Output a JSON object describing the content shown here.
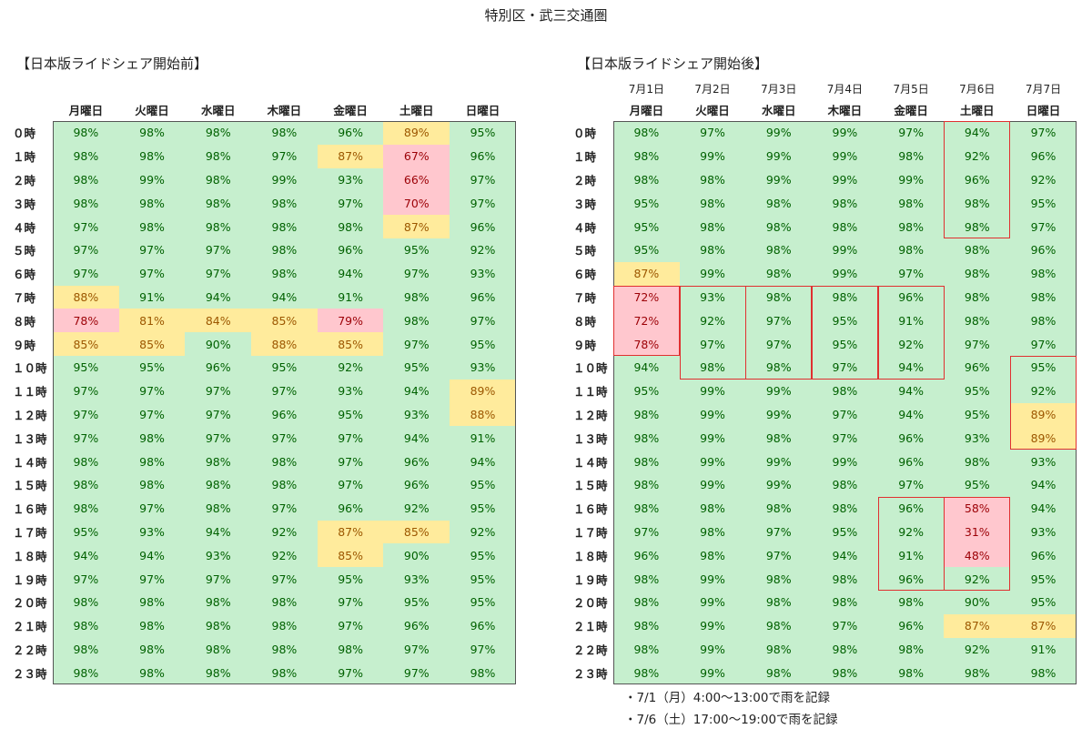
{
  "title": "特別区・武三交通圏",
  "chart_data": [
    {
      "type": "heatmap",
      "title": "【日本版ライドシェア開始前】",
      "columns": [
        "月曜日",
        "火曜日",
        "水曜日",
        "木曜日",
        "金曜日",
        "土曜日",
        "日曜日"
      ],
      "rows": [
        "０時",
        "１時",
        "２時",
        "３時",
        "４時",
        "５時",
        "６時",
        "７時",
        "８時",
        "９時",
        "１０時",
        "１１時",
        "１２時",
        "１３時",
        "１４時",
        "１５時",
        "１６時",
        "１７時",
        "１８時",
        "１９時",
        "２０時",
        "２１時",
        "２２時",
        "２３時"
      ],
      "values": [
        [
          98,
          98,
          98,
          98,
          96,
          89,
          95
        ],
        [
          98,
          98,
          98,
          97,
          87,
          67,
          96
        ],
        [
          98,
          99,
          98,
          99,
          93,
          66,
          97
        ],
        [
          98,
          98,
          98,
          98,
          97,
          70,
          97
        ],
        [
          97,
          98,
          98,
          98,
          98,
          87,
          96
        ],
        [
          97,
          97,
          97,
          98,
          96,
          95,
          92
        ],
        [
          97,
          97,
          97,
          98,
          94,
          97,
          93
        ],
        [
          88,
          91,
          94,
          94,
          91,
          98,
          96
        ],
        [
          78,
          81,
          84,
          85,
          79,
          98,
          97
        ],
        [
          85,
          85,
          90,
          88,
          85,
          97,
          95
        ],
        [
          95,
          95,
          96,
          95,
          92,
          95,
          93
        ],
        [
          97,
          97,
          97,
          97,
          93,
          94,
          89
        ],
        [
          97,
          97,
          97,
          96,
          95,
          93,
          88
        ],
        [
          97,
          98,
          97,
          97,
          97,
          94,
          91
        ],
        [
          98,
          98,
          98,
          98,
          97,
          96,
          94
        ],
        [
          98,
          98,
          98,
          98,
          97,
          96,
          95
        ],
        [
          98,
          97,
          98,
          97,
          96,
          92,
          95
        ],
        [
          95,
          93,
          94,
          92,
          87,
          85,
          92
        ],
        [
          94,
          94,
          93,
          92,
          85,
          90,
          95
        ],
        [
          97,
          97,
          97,
          97,
          95,
          93,
          95
        ],
        [
          98,
          98,
          98,
          98,
          97,
          95,
          95
        ],
        [
          98,
          98,
          98,
          98,
          97,
          96,
          96
        ],
        [
          98,
          98,
          98,
          98,
          98,
          97,
          97
        ],
        [
          98,
          98,
          98,
          98,
          97,
          97,
          98
        ]
      ],
      "unit": "%",
      "colors": {
        "green": "#c6efce",
        "yellow": "#ffeb9c",
        "pink": "#ffc7ce"
      }
    },
    {
      "type": "heatmap",
      "title": "【日本版ライドシェア開始後】",
      "dates": [
        "7月1日",
        "7月2日",
        "7月3日",
        "7月4日",
        "7月5日",
        "7月6日",
        "7月7日"
      ],
      "columns": [
        "月曜日",
        "火曜日",
        "水曜日",
        "木曜日",
        "金曜日",
        "土曜日",
        "日曜日"
      ],
      "rows": [
        "０時",
        "１時",
        "２時",
        "３時",
        "４時",
        "５時",
        "６時",
        "７時",
        "８時",
        "９時",
        "１０時",
        "１１時",
        "１２時",
        "１３時",
        "１４時",
        "１５時",
        "１６時",
        "１７時",
        "１８時",
        "１９時",
        "２０時",
        "２１時",
        "２２時",
        "２３時"
      ],
      "values": [
        [
          98,
          97,
          99,
          99,
          97,
          94,
          97
        ],
        [
          98,
          99,
          99,
          99,
          98,
          92,
          96
        ],
        [
          98,
          98,
          99,
          99,
          99,
          96,
          92
        ],
        [
          95,
          98,
          98,
          98,
          98,
          98,
          95
        ],
        [
          95,
          98,
          98,
          98,
          98,
          98,
          97
        ],
        [
          95,
          98,
          98,
          99,
          98,
          98,
          96
        ],
        [
          87,
          99,
          98,
          99,
          97,
          98,
          98
        ],
        [
          72,
          93,
          98,
          98,
          96,
          98,
          98
        ],
        [
          72,
          92,
          97,
          95,
          91,
          98,
          98
        ],
        [
          78,
          97,
          97,
          95,
          92,
          97,
          97
        ],
        [
          94,
          98,
          98,
          97,
          94,
          96,
          95
        ],
        [
          95,
          99,
          99,
          98,
          94,
          95,
          92
        ],
        [
          98,
          99,
          99,
          97,
          94,
          95,
          89
        ],
        [
          98,
          99,
          98,
          97,
          96,
          93,
          89
        ],
        [
          98,
          99,
          99,
          99,
          96,
          98,
          93
        ],
        [
          98,
          99,
          99,
          98,
          97,
          95,
          94
        ],
        [
          98,
          98,
          98,
          98,
          96,
          58,
          94
        ],
        [
          97,
          98,
          97,
          95,
          92,
          31,
          93
        ],
        [
          96,
          98,
          97,
          94,
          91,
          48,
          96
        ],
        [
          98,
          99,
          98,
          98,
          96,
          92,
          95
        ],
        [
          98,
          99,
          98,
          98,
          98,
          90,
          95
        ],
        [
          98,
          99,
          98,
          97,
          96,
          87,
          87
        ],
        [
          98,
          99,
          98,
          98,
          98,
          92,
          91
        ],
        [
          98,
          99,
          98,
          98,
          98,
          98,
          98
        ]
      ],
      "unit": "%",
      "colors": {
        "green": "#c6efce",
        "yellow": "#ffeb9c",
        "pink": "#ffc7ce"
      },
      "highlight_boxes": [
        {
          "col_start": 5,
          "col_end": 5,
          "row_start": 0,
          "row_end": 4
        },
        {
          "col_start": 0,
          "col_end": 0,
          "row_start": 7,
          "row_end": 9
        },
        {
          "col_start": 1,
          "col_end": 1,
          "row_start": 7,
          "row_end": 10
        },
        {
          "col_start": 2,
          "col_end": 2,
          "row_start": 7,
          "row_end": 10
        },
        {
          "col_start": 3,
          "col_end": 3,
          "row_start": 7,
          "row_end": 10
        },
        {
          "col_start": 4,
          "col_end": 4,
          "row_start": 7,
          "row_end": 10
        },
        {
          "col_start": 6,
          "col_end": 6,
          "row_start": 10,
          "row_end": 13
        },
        {
          "col_start": 4,
          "col_end": 4,
          "row_start": 16,
          "row_end": 19
        },
        {
          "col_start": 5,
          "col_end": 5,
          "row_start": 16,
          "row_end": 19
        }
      ],
      "notes": [
        "・7/1（月）4:00～13:00で雨を記録",
        "・7/6（土）17:00～19:00で雨を記録"
      ]
    }
  ]
}
